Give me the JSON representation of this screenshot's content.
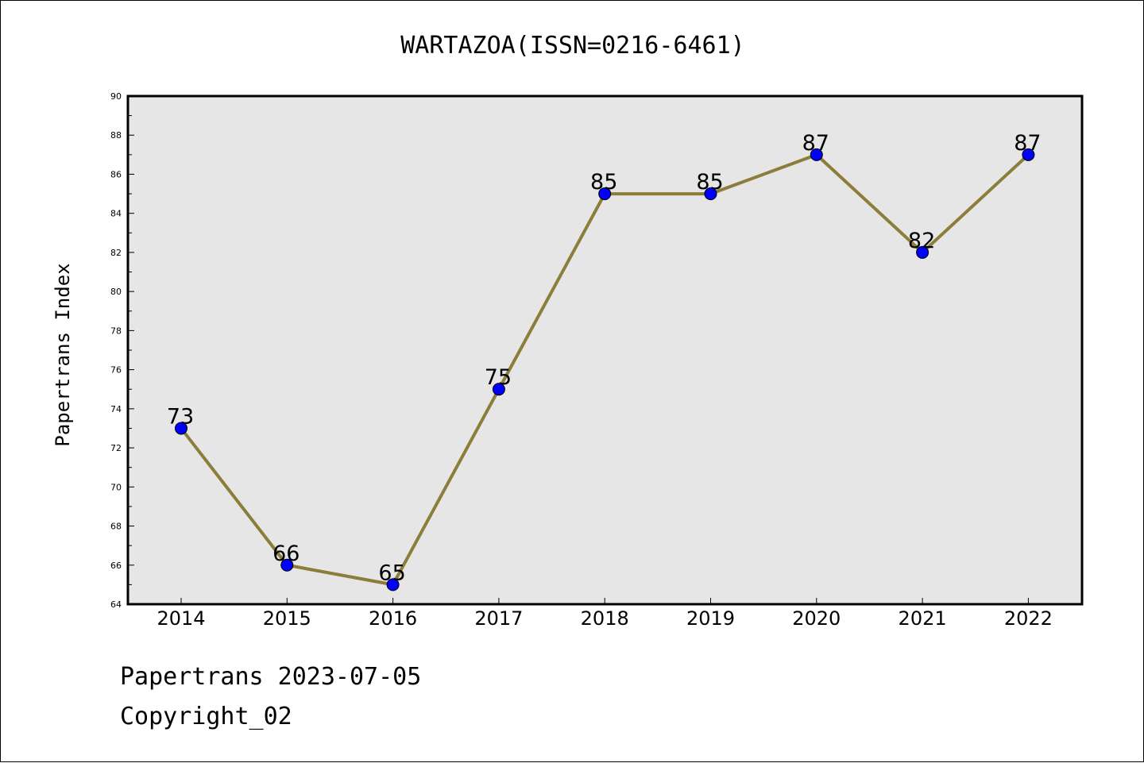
{
  "chart_data": {
    "type": "line",
    "title": "WARTAZOA(ISSN=0216-6461)",
    "xlabel": "",
    "ylabel": "Papertrans Index",
    "categories": [
      "2014",
      "2015",
      "2016",
      "2017",
      "2018",
      "2019",
      "2020",
      "2021",
      "2022"
    ],
    "series": [
      {
        "values": [
          73,
          66,
          65,
          75,
          85,
          85,
          87,
          82,
          87
        ]
      }
    ],
    "data_labels": [
      "73",
      "66",
      "65",
      "75",
      "85",
      "85",
      "87",
      "82",
      "87"
    ],
    "ylim": [
      64,
      90
    ],
    "yticks": [
      "64",
      "66",
      "68",
      "70",
      "72",
      "74",
      "76",
      "78",
      "80",
      "82",
      "84",
      "86",
      "88",
      "90"
    ],
    "grid": false,
    "legend": "none",
    "colors": {
      "line": "#8b7d3a",
      "marker": "#0000ff",
      "plot_background": "#e6e6e6",
      "figure_background": "#ffffff"
    }
  },
  "footer": {
    "line1": "Papertrans 2023-07-05",
    "line2": "Copyright_02"
  }
}
